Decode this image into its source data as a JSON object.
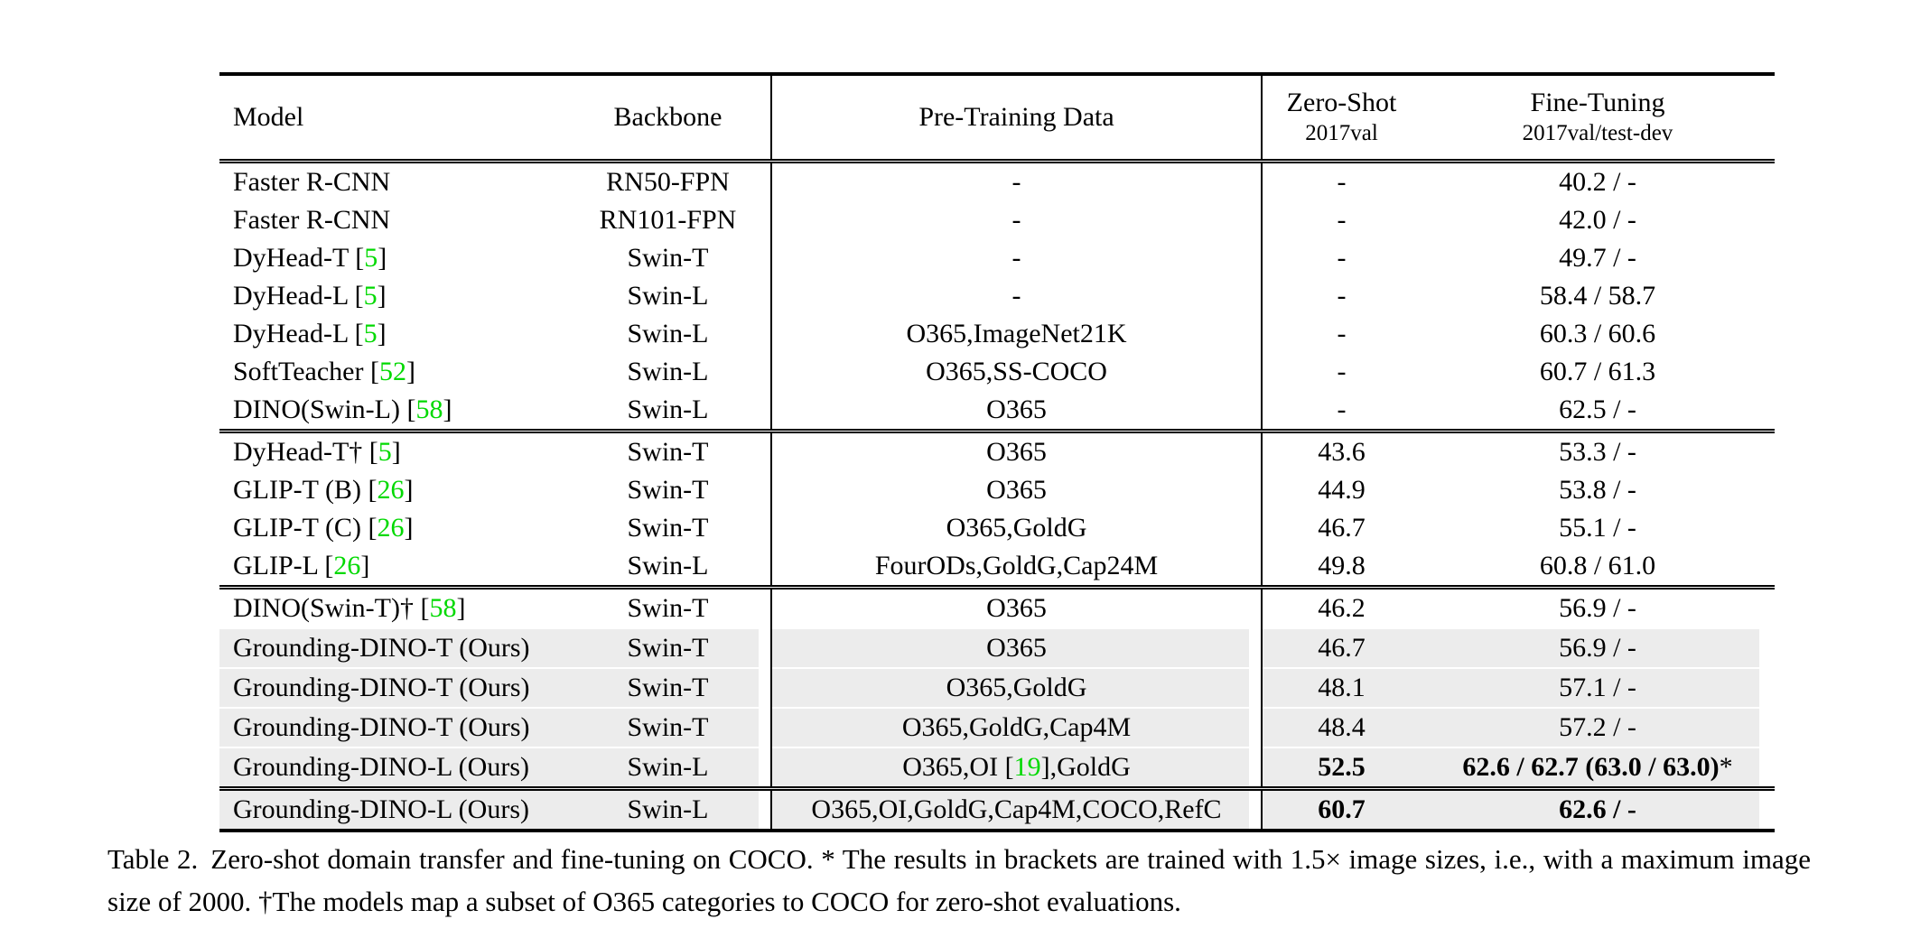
{
  "colors": {
    "reference_green": "#00d900",
    "row_shade": "#ececec",
    "text": "#000000",
    "background": "#ffffff"
  },
  "table": {
    "header": {
      "model": "Model",
      "backbone": "Backbone",
      "pretraining": "Pre-Training Data",
      "zero_shot_title": "Zero-Shot",
      "zero_shot_sub": "2017val",
      "fine_tuning_title": "Fine-Tuning",
      "fine_tuning_sub": "2017val/test-dev"
    },
    "groups": [
      {
        "rows": [
          {
            "model": "Faster R-CNN",
            "ref": null,
            "backbone": "RN50-FPN",
            "pretrain": "-",
            "zero_shot": "-",
            "fine_tuning": "40.2 / -",
            "shaded": false,
            "bold": false
          },
          {
            "model": "Faster R-CNN",
            "ref": null,
            "backbone": "RN101-FPN",
            "pretrain": "-",
            "zero_shot": "-",
            "fine_tuning": "42.0 / -",
            "shaded": false,
            "bold": false
          },
          {
            "model": "DyHead-T",
            "ref": "5",
            "backbone": "Swin-T",
            "pretrain": "-",
            "zero_shot": "-",
            "fine_tuning": "49.7 / -",
            "shaded": false,
            "bold": false
          },
          {
            "model": "DyHead-L",
            "ref": "5",
            "backbone": "Swin-L",
            "pretrain": "-",
            "zero_shot": "-",
            "fine_tuning": "58.4 / 58.7",
            "shaded": false,
            "bold": false
          },
          {
            "model": "DyHead-L",
            "ref": "5",
            "backbone": "Swin-L",
            "pretrain": "O365,ImageNet21K",
            "zero_shot": "-",
            "fine_tuning": "60.3 / 60.6",
            "shaded": false,
            "bold": false
          },
          {
            "model": "SoftTeacher",
            "ref": "52",
            "backbone": "Swin-L",
            "pretrain": "O365,SS-COCO",
            "zero_shot": "-",
            "fine_tuning": "60.7 / 61.3",
            "shaded": false,
            "bold": false
          },
          {
            "model": "DINO(Swin-L)",
            "ref": "58",
            "backbone": "Swin-L",
            "pretrain": "O365",
            "zero_shot": "-",
            "fine_tuning": "62.5 / -",
            "shaded": false,
            "bold": false
          }
        ]
      },
      {
        "rows": [
          {
            "model": "DyHead-T†",
            "ref": "5",
            "backbone": "Swin-T",
            "pretrain": "O365",
            "zero_shot": "43.6",
            "fine_tuning": "53.3 / -",
            "shaded": false,
            "bold": false
          },
          {
            "model": "GLIP-T (B)",
            "ref": "26",
            "backbone": "Swin-T",
            "pretrain": "O365",
            "zero_shot": "44.9",
            "fine_tuning": "53.8 / -",
            "shaded": false,
            "bold": false
          },
          {
            "model": "GLIP-T (C)",
            "ref": "26",
            "backbone": "Swin-T",
            "pretrain": "O365,GoldG",
            "zero_shot": "46.7",
            "fine_tuning": "55.1 / -",
            "shaded": false,
            "bold": false
          },
          {
            "model": "GLIP-L",
            "ref": "26",
            "backbone": "Swin-L",
            "pretrain": "FourODs,GoldG,Cap24M",
            "zero_shot": "49.8",
            "fine_tuning": "60.8 / 61.0",
            "shaded": false,
            "bold": false
          }
        ]
      },
      {
        "rows": [
          {
            "model": "DINO(Swin-T)†",
            "ref": "58",
            "backbone": "Swin-T",
            "pretrain": "O365",
            "zero_shot": "46.2",
            "fine_tuning": "56.9 / -",
            "shaded": false,
            "bold": false
          },
          {
            "model": "Grounding-DINO-T (Ours)",
            "ref": null,
            "backbone": "Swin-T",
            "pretrain": "O365",
            "zero_shot": "46.7",
            "fine_tuning": "56.9 / -",
            "shaded": true,
            "bold": false
          },
          {
            "model": "Grounding-DINO-T (Ours)",
            "ref": null,
            "backbone": "Swin-T",
            "pretrain": "O365,GoldG",
            "zero_shot": "48.1",
            "fine_tuning": "57.1 / -",
            "shaded": true,
            "bold": false
          },
          {
            "model": "Grounding-DINO-T (Ours)",
            "ref": null,
            "backbone": "Swin-T",
            "pretrain": "O365,GoldG,Cap4M",
            "zero_shot": "48.4",
            "fine_tuning": "57.2 / -",
            "shaded": true,
            "bold": false
          },
          {
            "model": "Grounding-DINO-L (Ours)",
            "ref": null,
            "backbone": "Swin-L",
            "pretrain_parts": [
              "O365,OI [",
              {
                "ref": "19"
              },
              "],GoldG"
            ],
            "zero_shot": "52.5",
            "fine_tuning": "62.6 / 62.7 (63.0 / 63.0)",
            "fine_tuning_suffix": "*",
            "shaded": true,
            "bold": true
          }
        ]
      },
      {
        "rows": [
          {
            "model": "Grounding-DINO-L (Ours)",
            "ref": null,
            "backbone": "Swin-L",
            "pretrain": "O365,OI,GoldG,Cap4M,COCO,RefC",
            "zero_shot": "60.7",
            "fine_tuning": "62.6 / -",
            "shaded": true,
            "bold": true
          }
        ]
      }
    ]
  },
  "caption": {
    "label": "Table 2.",
    "text": "Zero-shot domain transfer and fine-tuning on COCO. * The results in brackets are trained with 1.5× image sizes, i.e., with a maximum image size of 2000. †The models map a subset of O365 categories to COCO for zero-shot evaluations."
  }
}
